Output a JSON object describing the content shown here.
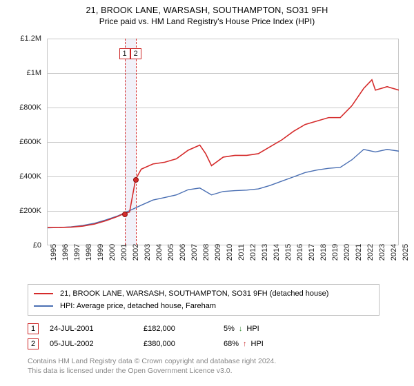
{
  "title": "21, BROOK LANE, WARSASH, SOUTHAMPTON, SO31 9FH",
  "subtitle": "Price paid vs. HM Land Registry's House Price Index (HPI)",
  "chart": {
    "type": "line",
    "background_color": "#ffffff",
    "grid_color": "#c8c8c8",
    "ylim": [
      0,
      1200000
    ],
    "ytick_step": 200000,
    "y_ticks": [
      "£0",
      "£200K",
      "£400K",
      "£600K",
      "£800K",
      "£1M",
      "£1.2M"
    ],
    "x_range": [
      1995,
      2025
    ],
    "x_ticks": [
      "1995",
      "1996",
      "1997",
      "1998",
      "1999",
      "2000",
      "2001",
      "2002",
      "2003",
      "2004",
      "2005",
      "2006",
      "2007",
      "2008",
      "2009",
      "2010",
      "2011",
      "2012",
      "2013",
      "2014",
      "2015",
      "2016",
      "2017",
      "2018",
      "2019",
      "2020",
      "2021",
      "2022",
      "2023",
      "2024",
      "2025"
    ],
    "series": [
      {
        "name": "21, BROOK LANE, WARSASH, SOUTHAMPTON, SO31 9FH (detached house)",
        "color": "#d52b2b",
        "line_width": 1.6,
        "data": [
          [
            1995,
            100000
          ],
          [
            1996,
            100000
          ],
          [
            1997,
            102000
          ],
          [
            1998,
            108000
          ],
          [
            1999,
            120000
          ],
          [
            2000,
            140000
          ],
          [
            2001,
            165000
          ],
          [
            2001.56,
            182000
          ],
          [
            2002,
            190000
          ],
          [
            2002.51,
            380000
          ],
          [
            2003,
            440000
          ],
          [
            2004,
            470000
          ],
          [
            2005,
            480000
          ],
          [
            2006,
            500000
          ],
          [
            2007,
            550000
          ],
          [
            2008,
            580000
          ],
          [
            2008.5,
            530000
          ],
          [
            2009,
            460000
          ],
          [
            2010,
            510000
          ],
          [
            2011,
            520000
          ],
          [
            2012,
            520000
          ],
          [
            2013,
            530000
          ],
          [
            2014,
            570000
          ],
          [
            2015,
            610000
          ],
          [
            2016,
            660000
          ],
          [
            2017,
            700000
          ],
          [
            2018,
            720000
          ],
          [
            2019,
            740000
          ],
          [
            2020,
            740000
          ],
          [
            2021,
            810000
          ],
          [
            2022,
            910000
          ],
          [
            2022.7,
            960000
          ],
          [
            2023,
            900000
          ],
          [
            2024,
            920000
          ],
          [
            2025,
            900000
          ]
        ]
      },
      {
        "name": "HPI: Average price, detached house, Fareham",
        "color": "#4a6fb3",
        "line_width": 1.4,
        "data": [
          [
            1995,
            98000
          ],
          [
            1996,
            100000
          ],
          [
            1997,
            104000
          ],
          [
            1998,
            112000
          ],
          [
            1999,
            125000
          ],
          [
            2000,
            145000
          ],
          [
            2001,
            168000
          ],
          [
            2002,
            198000
          ],
          [
            2003,
            230000
          ],
          [
            2004,
            260000
          ],
          [
            2005,
            275000
          ],
          [
            2006,
            290000
          ],
          [
            2007,
            320000
          ],
          [
            2008,
            330000
          ],
          [
            2009,
            290000
          ],
          [
            2010,
            310000
          ],
          [
            2011,
            315000
          ],
          [
            2012,
            318000
          ],
          [
            2013,
            325000
          ],
          [
            2014,
            345000
          ],
          [
            2015,
            370000
          ],
          [
            2016,
            395000
          ],
          [
            2017,
            420000
          ],
          [
            2018,
            435000
          ],
          [
            2019,
            445000
          ],
          [
            2020,
            450000
          ],
          [
            2021,
            495000
          ],
          [
            2022,
            555000
          ],
          [
            2023,
            540000
          ],
          [
            2024,
            555000
          ],
          [
            2025,
            545000
          ]
        ]
      }
    ],
    "sale_markers": [
      {
        "num": "1",
        "x": 2001.56,
        "y": 182000
      },
      {
        "num": "2",
        "x": 2002.51,
        "y": 380000
      }
    ]
  },
  "legend": [
    {
      "color": "#d52b2b",
      "label": "21, BROOK LANE, WARSASH, SOUTHAMPTON, SO31 9FH (detached house)"
    },
    {
      "color": "#4a6fb3",
      "label": "HPI: Average price, detached house, Fareham"
    }
  ],
  "sales": [
    {
      "num": "1",
      "date": "24-JUL-2001",
      "price": "£182,000",
      "pct": "5%",
      "direction": "↓",
      "direction_color": "#3a8f3a",
      "against": "HPI"
    },
    {
      "num": "2",
      "date": "05-JUL-2002",
      "price": "£380,000",
      "pct": "68%",
      "direction": "↑",
      "direction_color": "#cc3333",
      "against": "HPI"
    }
  ],
  "footnote_line1": "Contains HM Land Registry data © Crown copyright and database right 2024.",
  "footnote_line2": "This data is licensed under the Open Government Licence v3.0."
}
